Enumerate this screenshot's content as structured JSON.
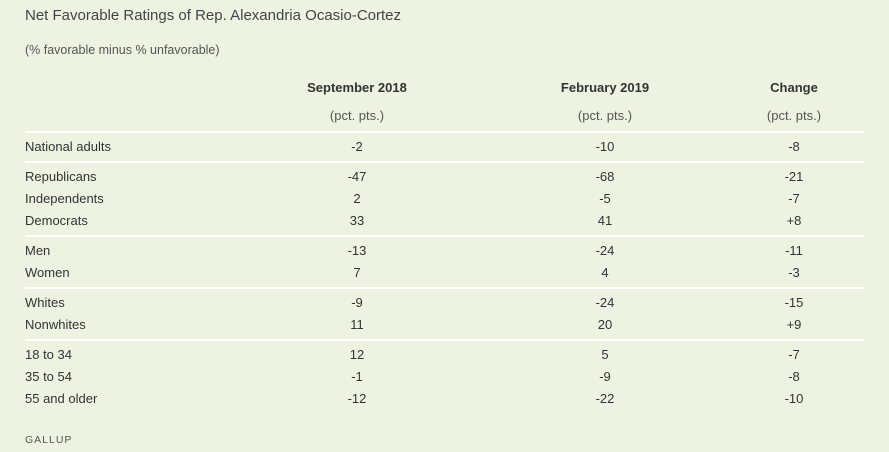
{
  "title": "Net Favorable Ratings of Rep. Alexandria Ocasio-Cortez",
  "subtitle": "(% favorable minus % unfavorable)",
  "source": "GALLUP",
  "colors": {
    "background": "#eef3e1",
    "divider": "#ffffff",
    "text": "#333333"
  },
  "chart_data": {
    "type": "table",
    "title": "Net Favorable Ratings of Rep. Alexandria Ocasio-Cortez",
    "subtitle": "(% favorable minus % unfavorable)",
    "columns": [
      {
        "header": "September 2018",
        "unit": "(pct. pts.)"
      },
      {
        "header": "February 2019",
        "unit": "(pct. pts.)"
      },
      {
        "header": "Change",
        "unit": "(pct. pts.)"
      }
    ],
    "groups": [
      {
        "rows": [
          {
            "label": "National adults",
            "values": [
              "-2",
              "-10",
              "-8"
            ]
          }
        ]
      },
      {
        "rows": [
          {
            "label": "Republicans",
            "values": [
              "-47",
              "-68",
              "-21"
            ]
          },
          {
            "label": "Independents",
            "values": [
              "2",
              "-5",
              "-7"
            ]
          },
          {
            "label": "Democrats",
            "values": [
              "33",
              "41",
              "+8"
            ]
          }
        ]
      },
      {
        "rows": [
          {
            "label": "Men",
            "values": [
              "-13",
              "-24",
              "-11"
            ]
          },
          {
            "label": "Women",
            "values": [
              "7",
              "4",
              "-3"
            ]
          }
        ]
      },
      {
        "rows": [
          {
            "label": "Whites",
            "values": [
              "-9",
              "-24",
              "-15"
            ]
          },
          {
            "label": "Nonwhites",
            "values": [
              "11",
              "20",
              "+9"
            ]
          }
        ]
      },
      {
        "rows": [
          {
            "label": "18 to 34",
            "values": [
              "12",
              "5",
              "-7"
            ]
          },
          {
            "label": "35 to 54",
            "values": [
              "-1",
              "-9",
              "-8"
            ]
          },
          {
            "label": "55 and older",
            "values": [
              "-12",
              "-22",
              "-10"
            ]
          }
        ]
      }
    ]
  }
}
